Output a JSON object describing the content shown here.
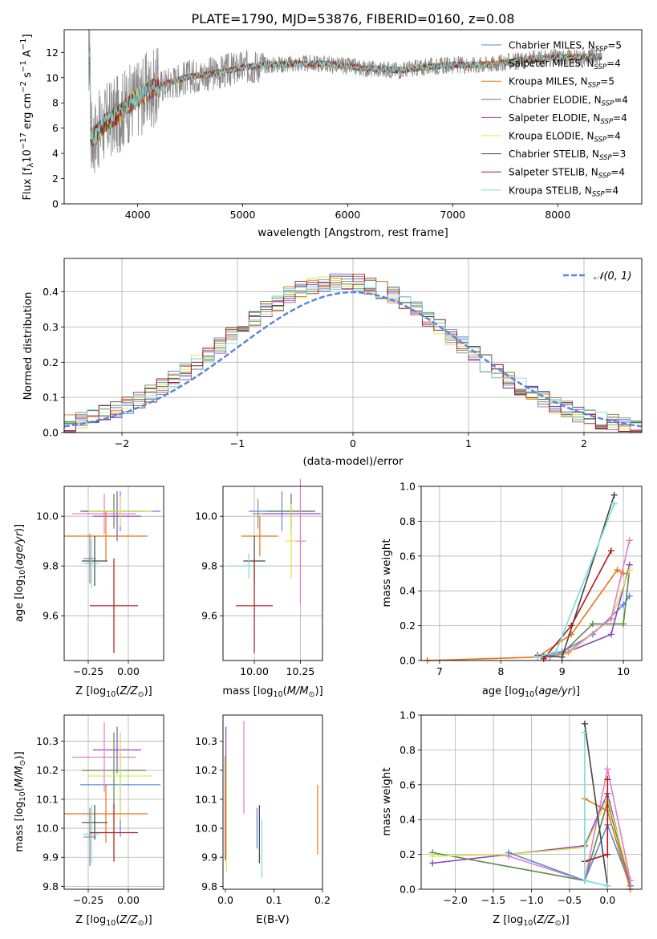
{
  "figure": {
    "title": "PLATE=1790, MJD=53876, FIBERID=0160, z=0.08"
  },
  "colors": {
    "blue": "#5b86d8",
    "orange": "#e8751a",
    "green": "#5a8a4a",
    "purple": "#8e44c7",
    "lime": "#d8e84a",
    "gray": "#888888",
    "dark": "#444444",
    "red": "#b01818",
    "cyan": "#7adcdc",
    "pink": "#e57bc0",
    "steel": "#5b86d8"
  },
  "chart_data": [
    {
      "id": "spectrum",
      "type": "line",
      "xlabel": "wavelength [Angstrom, rest frame]",
      "xlim": [
        3300,
        8800
      ],
      "ylim": [
        0,
        13.8
      ],
      "xticks": [
        4000,
        5000,
        6000,
        7000,
        8000
      ],
      "yticks": [
        0,
        2,
        4,
        6,
        8,
        10,
        12
      ],
      "grid": false,
      "legend_position": "right",
      "data_profile": {
        "x": [
          3550,
          3600,
          3700,
          3800,
          3900,
          4000,
          4100,
          4300,
          4500,
          4700,
          5000,
          5200,
          5500,
          5800,
          6000,
          6200,
          6500,
          6800,
          7000,
          7200,
          7400,
          7600,
          7800,
          8000,
          8200,
          8400
        ],
        "y": [
          5.2,
          5.5,
          6.5,
          7.0,
          7.8,
          8.4,
          9.0,
          9.6,
          10.1,
          10.3,
          10.8,
          11.0,
          11.1,
          11.1,
          10.9,
          10.7,
          10.6,
          10.9,
          11.0,
          11.0,
          11.1,
          11.3,
          11.5,
          11.6,
          11.6,
          11.7
        ]
      },
      "series": [
        {
          "name": "Chabrier MILES, N_SSP=5",
          "color": "blue"
        },
        {
          "name": "Salpeter MILES, N_SSP=4",
          "color": "orange"
        },
        {
          "name": "Kroupa MILES, N_SSP=5",
          "color": "orange"
        },
        {
          "name": "Chabrier ELODIE, N_SSP=4",
          "color": "green"
        },
        {
          "name": "Salpeter ELODIE, N_SSP=4",
          "color": "purple"
        },
        {
          "name": "Kroupa ELODIE, N_SSP=4",
          "color": "lime"
        },
        {
          "name": "Chabrier STELIB, N_SSP=3",
          "color": "dark"
        },
        {
          "name": "Salpeter STELIB, N_SSP=4",
          "color": "red"
        },
        {
          "name": "Kroupa STELIB, N_SSP=4",
          "color": "cyan"
        }
      ],
      "legend_prefix": [
        "Chabrier MILES, N",
        "Salpeter MILES, N",
        "Kroupa MILES, N",
        "Chabrier ELODIE, N",
        "Salpeter ELODIE, N",
        "Kroupa ELODIE, N",
        "Chabrier STELIB, N",
        "Salpeter STELIB, N",
        "Kroupa STELIB, N"
      ],
      "legend_sub": "SSP",
      "legend_value": [
        "=5",
        "=4",
        "=5",
        "=4",
        "=4",
        "=4",
        "=3",
        "=4",
        "=4"
      ]
    },
    {
      "id": "residuals",
      "type": "histogram",
      "xlabel": "(data-model)/error",
      "ylabel": "Normed distribution",
      "xlim": [
        -2.5,
        2.5
      ],
      "ylim": [
        0,
        0.495
      ],
      "xticks": [
        -2,
        -1,
        0,
        1,
        2
      ],
      "yticks": [
        0.0,
        0.1,
        0.2,
        0.3,
        0.4
      ],
      "grid": true,
      "legend": "N(0,1)",
      "legend_position": "top-right",
      "curve": {
        "type": "normal",
        "mean": 0,
        "sigma": 1,
        "color": "steel",
        "dash": true
      },
      "bin_width": 0.1,
      "series_colors": [
        "blue",
        "orange",
        "green",
        "purple",
        "lime",
        "gray",
        "dark",
        "red",
        "cyan"
      ]
    },
    {
      "id": "age_vs_Z",
      "type": "errorbar",
      "xlabel": "Z [log10(Z/Z⊙)]",
      "ylabel": "age [log10(age/yr)]",
      "xlim": [
        -0.4,
        0.22
      ],
      "ylim": [
        9.42,
        10.12
      ],
      "xticks": [
        -0.25,
        0.0
      ],
      "xticklabels": [
        "−0.25",
        "0.00"
      ],
      "yticks": [
        9.6,
        9.8,
        10.0
      ],
      "grid": true,
      "points": [
        {
          "x": -0.05,
          "y": 10.02,
          "xerr": 0.25,
          "yerr": 0.08,
          "color": "blue"
        },
        {
          "x": -0.07,
          "y": 10.0,
          "xerr": 0.15,
          "yerr": 0.1,
          "color": "purple"
        },
        {
          "x": -0.09,
          "y": 10.02,
          "xerr": 0.2,
          "yerr": 0.07,
          "color": "green"
        },
        {
          "x": -0.15,
          "y": 10.01,
          "xerr": 0.2,
          "yerr": 0.08,
          "color": "pink"
        },
        {
          "x": -0.05,
          "y": 10.02,
          "xerr": 0.2,
          "yerr": 0.06,
          "color": "lime"
        },
        {
          "x": -0.14,
          "y": 9.92,
          "xerr": 0.26,
          "yerr": 0.1,
          "color": "orange"
        },
        {
          "x": -0.21,
          "y": 9.82,
          "xerr": 0.08,
          "yerr": 0.1,
          "color": "dark"
        },
        {
          "x": -0.23,
          "y": 9.81,
          "xerr": 0.05,
          "yerr": 0.1,
          "color": "cyan"
        },
        {
          "x": -0.24,
          "y": 9.83,
          "xerr": 0.04,
          "yerr": 0.1,
          "color": "gray"
        },
        {
          "x": -0.09,
          "y": 9.64,
          "xerr": 0.15,
          "yerr": 0.19,
          "color": "red"
        }
      ]
    },
    {
      "id": "age_vs_mass",
      "type": "errorbar",
      "xlabel": "mass [log10(M/M⊙)]",
      "xlim": [
        9.83,
        10.37
      ],
      "ylim": [
        9.42,
        10.12
      ],
      "xticks": [
        10.0,
        10.25
      ],
      "xticklabels": [
        "10.00",
        "10.25"
      ],
      "yticks": [
        9.6,
        9.8,
        10.0
      ],
      "grid": true,
      "points": [
        {
          "x": 10.15,
          "y": 10.02,
          "xerr": 0.18,
          "yerr": 0.08,
          "color": "blue"
        },
        {
          "x": 10.2,
          "y": 10.01,
          "xerr": 0.16,
          "yerr": 0.08,
          "color": "purple"
        },
        {
          "x": 10.2,
          "y": 10.02,
          "xerr": 0.13,
          "yerr": 0.07,
          "color": "green"
        },
        {
          "x": 10.25,
          "y": 9.9,
          "xerr": 0.03,
          "yerr": 0.25,
          "color": "pink"
        },
        {
          "x": 10.2,
          "y": 9.9,
          "xerr": 0.03,
          "yerr": 0.15,
          "color": "lime"
        },
        {
          "x": 10.03,
          "y": 9.92,
          "xerr": 0.1,
          "yerr": 0.08,
          "color": "orange"
        },
        {
          "x": 10.0,
          "y": 9.82,
          "xerr": 0.06,
          "yerr": 0.1,
          "color": "dark"
        },
        {
          "x": 9.97,
          "y": 9.8,
          "xerr": 0.1,
          "yerr": 0.05,
          "color": "cyan"
        },
        {
          "x": 10.0,
          "y": 9.64,
          "xerr": 0.1,
          "yerr": 0.19,
          "color": "red"
        },
        {
          "x": 10.02,
          "y": 10.01,
          "xerr": 0.03,
          "yerr": 0.06,
          "color": "gray"
        }
      ]
    },
    {
      "id": "weight_vs_age",
      "type": "line",
      "xlabel": "age [log10(age/yr)]",
      "ylabel": "mass weight",
      "xlim": [
        6.7,
        10.3
      ],
      "ylim": [
        0,
        1
      ],
      "xticks": [
        7,
        8,
        9,
        10
      ],
      "yticks": [
        0.0,
        0.2,
        0.4,
        0.6,
        0.8,
        1.0
      ],
      "grid": true,
      "series": [
        {
          "color": "orange",
          "x": [
            6.8,
            8.6,
            9.15,
            9.9,
            10.0
          ],
          "y": [
            0.0,
            0.02,
            0.15,
            0.52,
            0.5
          ]
        },
        {
          "color": "blue",
          "x": [
            8.7,
            9.0,
            9.5,
            10.0,
            10.1
          ],
          "y": [
            0.03,
            0.05,
            0.15,
            0.32,
            0.37
          ]
        },
        {
          "color": "green",
          "x": [
            8.7,
            9.0,
            9.5,
            10.0,
            10.1
          ],
          "y": [
            0.02,
            0.04,
            0.21,
            0.21,
            0.52
          ]
        },
        {
          "color": "purple",
          "x": [
            8.8,
            9.1,
            9.8,
            10.1
          ],
          "y": [
            0.02,
            0.05,
            0.15,
            0.55
          ]
        },
        {
          "color": "lime",
          "x": [
            8.8,
            9.1,
            9.8,
            10.1
          ],
          "y": [
            0.02,
            0.04,
            0.24,
            0.52
          ]
        },
        {
          "color": "pink",
          "x": [
            8.8,
            9.1,
            9.8,
            10.1
          ],
          "y": [
            0.02,
            0.05,
            0.24,
            0.69
          ]
        },
        {
          "color": "dark",
          "x": [
            8.6,
            9.0,
            9.85
          ],
          "y": [
            0.03,
            0.02,
            0.95
          ]
        },
        {
          "color": "red",
          "x": [
            8.7,
            9.15,
            9.8
          ],
          "y": [
            0.01,
            0.2,
            0.63
          ]
        },
        {
          "color": "cyan",
          "x": [
            8.6,
            8.9,
            9.85
          ],
          "y": [
            0.02,
            0.05,
            0.9
          ]
        }
      ]
    },
    {
      "id": "mass_vs_Z",
      "type": "errorbar",
      "xlabel": "Z [log10(Z/Z⊙)]",
      "ylabel": "mass [log10(M/M⊙)]",
      "xlim": [
        -0.4,
        0.22
      ],
      "ylim": [
        9.79,
        10.39
      ],
      "xticks": [
        -0.25,
        0.0
      ],
      "xticklabels": [
        "−0.25",
        "0.00"
      ],
      "yticks": [
        9.8,
        9.9,
        10.0,
        10.1,
        10.2,
        10.3
      ],
      "grid": true,
      "points": [
        {
          "x": -0.05,
          "y": 10.15,
          "xerr": 0.25,
          "yerr": 0.18,
          "color": "blue"
        },
        {
          "x": -0.07,
          "y": 10.27,
          "xerr": 0.15,
          "yerr": 0.08,
          "color": "purple"
        },
        {
          "x": -0.09,
          "y": 10.2,
          "xerr": 0.2,
          "yerr": 0.13,
          "color": "green"
        },
        {
          "x": -0.15,
          "y": 10.245,
          "xerr": 0.2,
          "yerr": 0.12,
          "color": "pink"
        },
        {
          "x": -0.05,
          "y": 10.18,
          "xerr": 0.2,
          "yerr": 0.15,
          "color": "lime"
        },
        {
          "x": -0.14,
          "y": 10.05,
          "xerr": 0.26,
          "yerr": 0.1,
          "color": "orange"
        },
        {
          "x": -0.21,
          "y": 10.02,
          "xerr": 0.08,
          "yerr": 0.06,
          "color": "dark"
        },
        {
          "x": -0.23,
          "y": 9.98,
          "xerr": 0.05,
          "yerr": 0.1,
          "color": "cyan"
        },
        {
          "x": -0.24,
          "y": 9.97,
          "xerr": 0.04,
          "yerr": 0.1,
          "color": "gray"
        },
        {
          "x": -0.09,
          "y": 9.985,
          "xerr": 0.15,
          "yerr": 0.1,
          "color": "red"
        }
      ]
    },
    {
      "id": "mass_vs_ebv",
      "type": "errorbar",
      "xlabel": "E(B-V)",
      "xlim": [
        -0.005,
        0.2
      ],
      "ylim": [
        9.79,
        10.39
      ],
      "xticks": [
        0.0,
        0.1,
        0.2
      ],
      "xticklabels": [
        "0.0",
        "0.1",
        "0.2"
      ],
      "yticks": [
        9.8,
        9.9,
        10.0,
        10.1,
        10.2,
        10.3
      ],
      "grid": false,
      "points": [
        {
          "x": 0.0,
          "y": 10.07,
          "xerr": 0,
          "yerr": 0.18,
          "color": "red"
        },
        {
          "x": 0.001,
          "y": 10.25,
          "xerr": 0,
          "yerr": 0.1,
          "color": "purple"
        },
        {
          "x": 0.002,
          "y": 10.05,
          "xerr": 0,
          "yerr": 0.2,
          "color": "lime"
        },
        {
          "x": 0.038,
          "y": 10.21,
          "xerr": 0,
          "yerr": 0.16,
          "color": "pink"
        },
        {
          "x": 0.065,
          "y": 10.0,
          "xerr": 0,
          "yerr": 0.07,
          "color": "blue"
        },
        {
          "x": 0.07,
          "y": 9.98,
          "xerr": 0,
          "yerr": 0.1,
          "color": "dark"
        },
        {
          "x": 0.075,
          "y": 9.93,
          "xerr": 0,
          "yerr": 0.1,
          "color": "cyan"
        },
        {
          "x": 0.19,
          "y": 10.03,
          "xerr": 0,
          "yerr": 0.12,
          "color": "orange"
        }
      ]
    },
    {
      "id": "weight_vs_Z",
      "type": "line",
      "xlabel": "Z [log10(Z/Z⊙)]",
      "ylabel": "mass weight",
      "xlim": [
        -2.45,
        0.45
      ],
      "ylim": [
        0,
        1
      ],
      "xticks": [
        -2.0,
        -1.5,
        -1.0,
        -0.5,
        0.0
      ],
      "xticklabels": [
        "−2.0",
        "−1.5",
        "−1.0",
        "−0.5",
        "0.0"
      ],
      "yticks": [
        0.0,
        0.2,
        0.4,
        0.6,
        0.8,
        1.0
      ],
      "grid": true,
      "series": [
        {
          "color": "green",
          "x": [
            -2.3,
            -0.3,
            0.0,
            0.3
          ],
          "y": [
            0.21,
            0.05,
            0.5,
            0.02
          ]
        },
        {
          "color": "purple",
          "x": [
            -2.3,
            -0.3,
            0.0,
            0.3
          ],
          "y": [
            0.15,
            0.25,
            0.55,
            0.02
          ]
        },
        {
          "color": "lime",
          "x": [
            -2.3,
            -1.3,
            -0.3,
            0.0,
            0.3
          ],
          "y": [
            0.19,
            0.2,
            0.24,
            0.52,
            0.05
          ]
        },
        {
          "color": "pink",
          "x": [
            -1.3,
            -0.3,
            0.0,
            0.3
          ],
          "y": [
            0.19,
            0.05,
            0.69,
            0.05
          ]
        },
        {
          "color": "blue",
          "x": [
            -1.3,
            -0.3,
            0.0,
            0.3
          ],
          "y": [
            0.21,
            0.05,
            0.37,
            0.02
          ]
        },
        {
          "color": "orange",
          "x": [
            -0.3,
            0.0,
            0.3
          ],
          "y": [
            0.52,
            0.45,
            0.0
          ]
        },
        {
          "color": "dark",
          "x": [
            -0.3,
            0.0
          ],
          "y": [
            0.95,
            0.02
          ]
        },
        {
          "color": "red",
          "x": [
            -0.3,
            0.0,
            0.0
          ],
          "y": [
            0.16,
            0.2,
            0.63
          ]
        },
        {
          "color": "cyan",
          "x": [
            -0.3,
            -0.3,
            0.0
          ],
          "y": [
            0.9,
            0.05,
            0.02
          ]
        }
      ]
    }
  ]
}
